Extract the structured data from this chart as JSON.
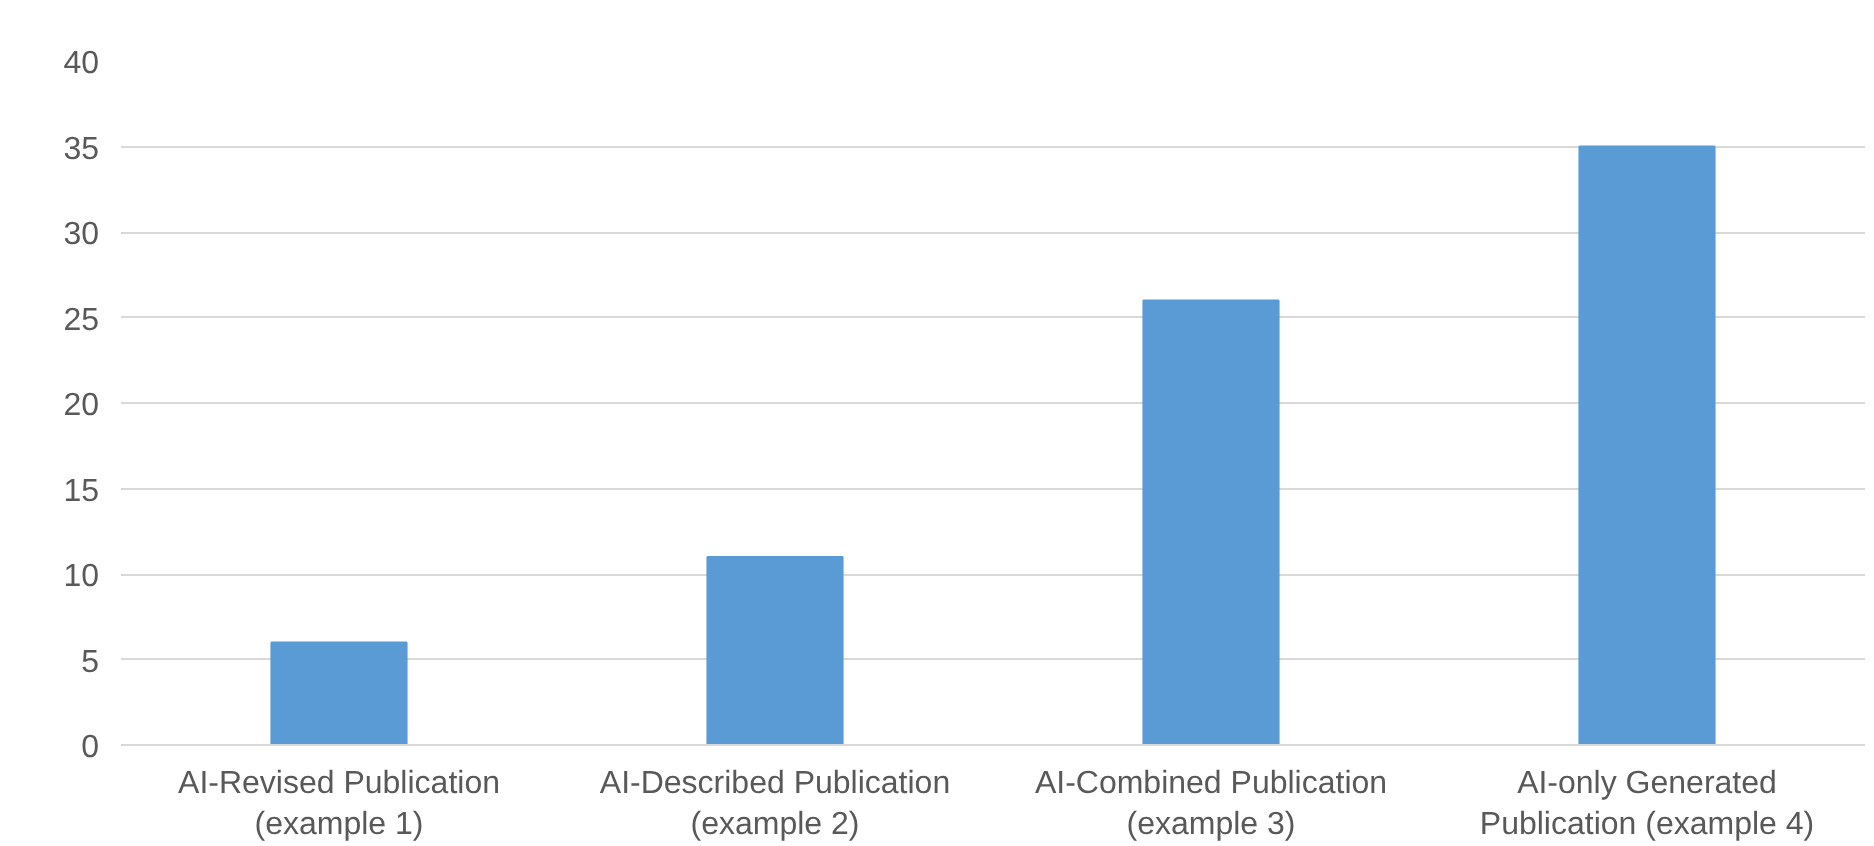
{
  "chart_data": {
    "type": "bar",
    "categories": [
      "AI-Revised Publication\n(example 1)",
      "AI-Described Publication\n(example 2)",
      "AI-Combined Publication\n(example 3)",
      "AI-only Generated\nPublication (example 4)"
    ],
    "values": [
      6,
      11,
      26,
      35
    ],
    "color": "#5b9bd5",
    "ylim": [
      0,
      40
    ],
    "yticks": [
      0,
      5,
      10,
      15,
      20,
      25,
      30,
      35,
      40
    ],
    "grid": "y"
  }
}
